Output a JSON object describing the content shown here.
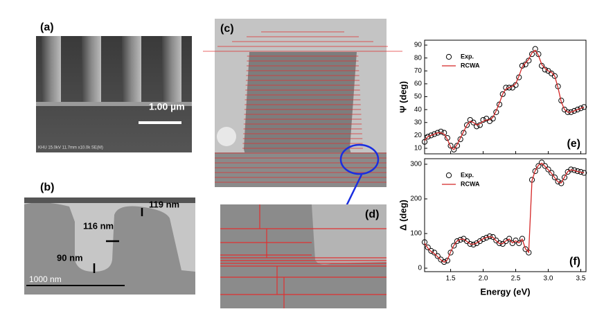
{
  "panels": {
    "a": {
      "label": "(a)",
      "scale_bar": "1.00 µm",
      "info": "KHU 15.0kV 11.7mm x10.0k SE(M)"
    },
    "b": {
      "label": "(b)",
      "dims": [
        "119 nm",
        "116 nm",
        "90 nm"
      ],
      "scale_bar": "1000 nm"
    },
    "c": {
      "label": "(c)"
    },
    "d": {
      "label": "(d)"
    }
  },
  "chart_data": [
    {
      "type": "line",
      "panel": "(e)",
      "ylabel": "Ψ (deg)",
      "x": [
        1.1,
        1.15,
        1.2,
        1.25,
        1.3,
        1.35,
        1.4,
        1.45,
        1.5,
        1.55,
        1.6,
        1.65,
        1.7,
        1.75,
        1.8,
        1.85,
        1.9,
        1.95,
        2.0,
        2.05,
        2.1,
        2.15,
        2.2,
        2.25,
        2.3,
        2.35,
        2.4,
        2.45,
        2.5,
        2.55,
        2.6,
        2.65,
        2.7,
        2.75,
        2.8,
        2.85,
        2.9,
        2.95,
        3.0,
        3.05,
        3.1,
        3.15,
        3.2,
        3.25,
        3.3,
        3.35,
        3.4,
        3.45,
        3.5,
        3.55
      ],
      "series": [
        {
          "name": "Exp.",
          "color": "#000000",
          "marker": "circle",
          "values": [
            15,
            19,
            20,
            21,
            22,
            23,
            22,
            18,
            12,
            9,
            12,
            17,
            22,
            28,
            32,
            30,
            27,
            28,
            32,
            33,
            31,
            33,
            38,
            44,
            52,
            57,
            57,
            57,
            59,
            65,
            74,
            75,
            78,
            83,
            87,
            83,
            74,
            71,
            70,
            68,
            66,
            58,
            47,
            40,
            38,
            38,
            39,
            40,
            41,
            42
          ]
        },
        {
          "name": "RCWA",
          "color": "#d42424",
          "marker": "line",
          "values": [
            16,
            19,
            20,
            21,
            22,
            22,
            21,
            17,
            11,
            9,
            13,
            18,
            23,
            28,
            31,
            30,
            28,
            29,
            31,
            32,
            32,
            34,
            39,
            45,
            52,
            56,
            57,
            58,
            60,
            66,
            73,
            76,
            79,
            84,
            86,
            82,
            75,
            72,
            70,
            69,
            66,
            57,
            46,
            40,
            38,
            38,
            39,
            40,
            41,
            42
          ]
        }
      ],
      "xlim": [
        1.1,
        3.58
      ],
      "ylim": [
        5.7,
        93.8
      ],
      "xticks": [
        1.5,
        {
          "value": 2,
          "label": "2.0"
        },
        2.5,
        {
          "value": 3,
          "label": "3.0"
        },
        3.5
      ],
      "yticks": [
        10,
        20,
        30,
        40,
        50,
        60,
        70,
        80,
        90
      ]
    },
    {
      "type": "line",
      "panel": "(f)",
      "ylabel": "Δ (deg)",
      "xlabel": "Energy (eV)",
      "x": [
        1.1,
        1.15,
        1.2,
        1.25,
        1.3,
        1.35,
        1.4,
        1.45,
        1.5,
        1.55,
        1.6,
        1.65,
        1.7,
        1.75,
        1.8,
        1.85,
        1.9,
        1.95,
        2.0,
        2.05,
        2.1,
        2.15,
        2.2,
        2.25,
        2.3,
        2.35,
        2.4,
        2.45,
        2.5,
        2.55,
        2.6,
        2.65,
        2.7,
        2.75,
        2.8,
        2.85,
        2.9,
        2.95,
        3.0,
        3.05,
        3.1,
        3.15,
        3.2,
        3.25,
        3.3,
        3.35,
        3.4,
        3.45,
        3.5,
        3.55
      ],
      "series": [
        {
          "name": "Exp.",
          "color": "#000000",
          "marker": "circle",
          "values": [
            75,
            60,
            50,
            45,
            35,
            25,
            18,
            22,
            45,
            65,
            78,
            82,
            85,
            78,
            70,
            68,
            72,
            78,
            84,
            88,
            92,
            90,
            80,
            72,
            70,
            78,
            85,
            72,
            80,
            72,
            85,
            55,
            45,
            255,
            280,
            295,
            305,
            295,
            285,
            275,
            262,
            250,
            245,
            262,
            278,
            285,
            283,
            280,
            278,
            275
          ]
        },
        {
          "name": "RCWA",
          "color": "#d42424",
          "marker": "line",
          "values": [
            72,
            58,
            48,
            42,
            33,
            24,
            17,
            24,
            47,
            66,
            79,
            83,
            84,
            77,
            70,
            69,
            73,
            79,
            85,
            89,
            91,
            89,
            79,
            71,
            71,
            79,
            84,
            73,
            79,
            73,
            84,
            56,
            46,
            252,
            282,
            297,
            303,
            294,
            284,
            274,
            261,
            249,
            246,
            263,
            279,
            284,
            282,
            279,
            277,
            275
          ]
        }
      ],
      "xlim": [
        1.1,
        3.58
      ],
      "ylim": [
        -10,
        316
      ],
      "xticks": [
        1.5,
        {
          "value": 2,
          "label": "2.0"
        },
        2.5,
        {
          "value": 3,
          "label": "3.0"
        },
        3.5
      ],
      "yticks": [
        0,
        100,
        200,
        300
      ]
    }
  ]
}
